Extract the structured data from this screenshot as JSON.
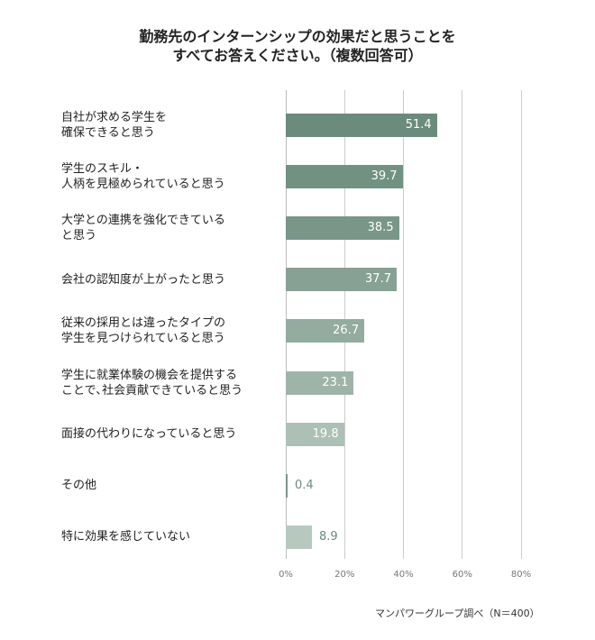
{
  "chart_data": {
    "type": "bar",
    "orientation": "horizontal",
    "title": [
      "勤務先のインターンシップの効果だと思うことを",
      "すべてお答えください。（複数回答可）"
    ],
    "categories": [
      "自社が求める学生を\n確保できると思う",
      "学生のスキル・\n人柄を見極められていると思う",
      "大学との連携を強化できている\nと思う",
      "会社の認知度が上がったと思う",
      "従来の採用とは違ったタイプの\n学生を見つけられていると思う",
      "学生に就業体験の機会を提供する\nことで､社会貢献できていると思う",
      "面接の代わりになっていると思う",
      "その他",
      "特に効果を感じていない"
    ],
    "values": [
      51.4,
      39.7,
      38.5,
      37.7,
      26.7,
      23.1,
      19.8,
      0.4,
      8.9
    ],
    "colors": [
      "#6b8b7d",
      "#719181",
      "#799688",
      "#87a194",
      "#94ab9f",
      "#9fb4a9",
      "#adc0b6",
      "#7a9689",
      "#b7c8bf"
    ],
    "xlim": [
      0,
      80
    ],
    "xticks": [
      "0%",
      "20%",
      "40%",
      "60%",
      "80%"
    ],
    "grid": true,
    "source": "マンパワーグループ調べ（N＝400）"
  }
}
